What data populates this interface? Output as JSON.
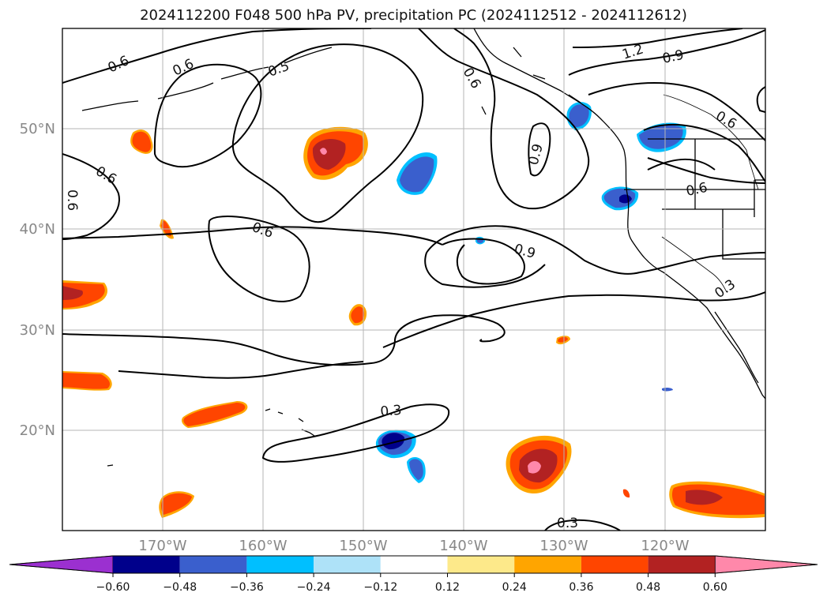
{
  "title": "2024112200 F048 500 hPa PV, precipitation PC (2024112512 - 2024112612)",
  "map": {
    "lat_labels": [
      "50°N",
      "40°N",
      "30°N",
      "20°N"
    ],
    "lon_labels": [
      "170°W",
      "160°W",
      "150°W",
      "140°W",
      "130°W",
      "120°W"
    ],
    "contour_labels": [
      "0.6",
      "0.6",
      "0.5",
      "0.6",
      "0.6",
      "0.6",
      "0.6",
      "0.9",
      "1.2",
      "0.9",
      "0.6",
      "0.6",
      "0.9",
      "0.3",
      "0.3",
      "0.3"
    ]
  },
  "colorbar": {
    "ticks": [
      "−0.60",
      "−0.48",
      "−0.36",
      "−0.24",
      "−0.12",
      "0.12",
      "0.24",
      "0.36",
      "0.48",
      "0.60"
    ],
    "colors": [
      "#9b30d0",
      "#00008b",
      "#3a5fcd",
      "#00bfff",
      "#aee2f8",
      "#ffffff",
      "#fde98a",
      "#ffa500",
      "#ff4500",
      "#b22222",
      "#ff88aa"
    ]
  }
}
